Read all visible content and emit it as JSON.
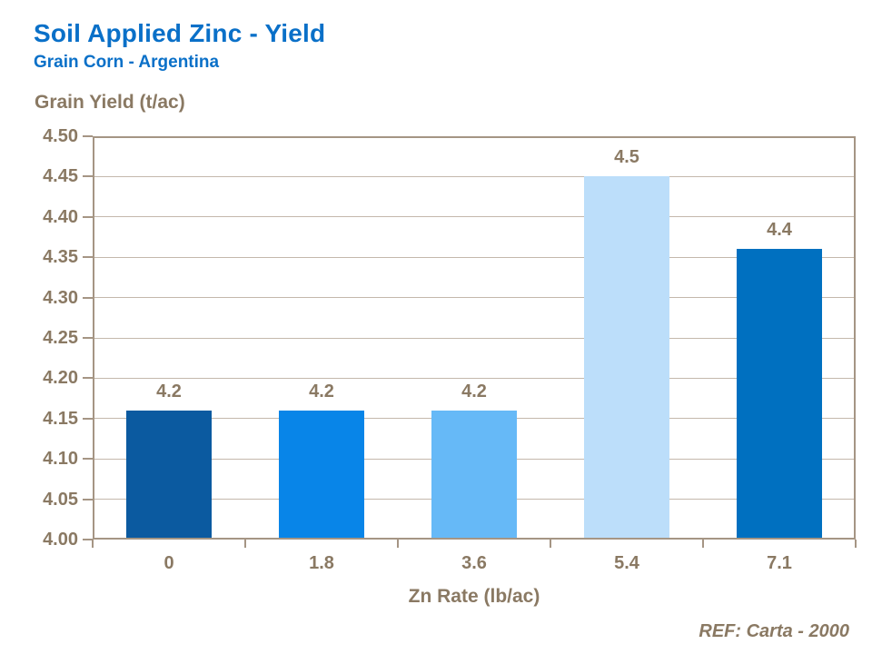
{
  "colors": {
    "blue": "#0A70C8",
    "brown": "#8A7963",
    "frame": "#A59584",
    "grid": "#C4B8AC",
    "bg": "#FFFFFF"
  },
  "chart_data": {
    "type": "bar",
    "title": "Soil Applied Zinc - Yield",
    "subtitle": "Grain Corn - Argentina",
    "ylabel": "Grain Yield (t/ac)",
    "xlabel": "Zn Rate (lb/ac)",
    "reference": "REF: Carta - 2000",
    "categories": [
      "0",
      "1.8",
      "3.6",
      "5.4",
      "7.1"
    ],
    "values": [
      4.16,
      4.16,
      4.16,
      4.45,
      4.36
    ],
    "bar_labels": [
      "4.2",
      "4.2",
      "4.2",
      "4.5",
      "4.4"
    ],
    "bar_colors": [
      "#0B5AA0",
      "#0885E8",
      "#66B9F7",
      "#BCDEFA",
      "#0070C0"
    ],
    "ylim": [
      4.0,
      4.5
    ],
    "ytick_step": 0.05,
    "y_ticks": [
      "4.00",
      "4.05",
      "4.10",
      "4.15",
      "4.20",
      "4.25",
      "4.30",
      "4.35",
      "4.40",
      "4.45",
      "4.50"
    ],
    "grid": "horizontal",
    "legend": "none"
  }
}
